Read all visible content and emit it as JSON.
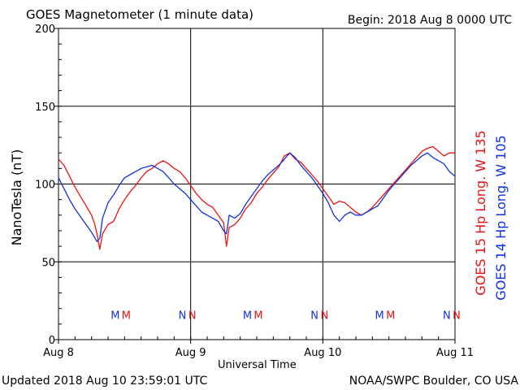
{
  "header": {
    "title": "GOES Magnetometer (1 minute data)",
    "begin": "Begin:  2018 Aug 8 0000 UTC"
  },
  "footer": {
    "updated": "Updated 2018 Aug 10 23:59:01 UTC",
    "credit": "NOAA/SWPC Boulder, CO USA"
  },
  "chart_data": {
    "type": "line",
    "title": "GOES Magnetometer (1 minute data)",
    "xlabel": "Universal Time",
    "ylabel": "NanoTesla (nT)",
    "ylim": [
      0,
      200
    ],
    "yticks": [
      0,
      50,
      100,
      150,
      200
    ],
    "xlim": [
      0,
      72
    ],
    "xticks": [
      {
        "x": 0,
        "label": "Aug 8"
      },
      {
        "x": 24,
        "label": "Aug 9"
      },
      {
        "x": 48,
        "label": "Aug 10"
      },
      {
        "x": 72,
        "label": "Aug 11"
      }
    ],
    "grid": true,
    "series": [
      {
        "name": "GOES 15 Hp  Long. W 135",
        "color": "#ee1111",
        "x": [
          0,
          1,
          2,
          3,
          4,
          5,
          6,
          6.5,
          7,
          7.5,
          8,
          9,
          10,
          11,
          12,
          13,
          14,
          15,
          16,
          17,
          18,
          19,
          20,
          21,
          22,
          23,
          24,
          25,
          26,
          27,
          28,
          29,
          30,
          30.5,
          31,
          32,
          33,
          34,
          35,
          36,
          37,
          38,
          39,
          40,
          41,
          42,
          43,
          44,
          45,
          46,
          47,
          48,
          49,
          50,
          51,
          52,
          53,
          54,
          55,
          56,
          57,
          58,
          59,
          60,
          61,
          62,
          63,
          64,
          65,
          66,
          67,
          68,
          69,
          70,
          71,
          72
        ],
        "values": [
          116,
          112,
          105,
          98,
          92,
          86,
          80,
          75,
          68,
          58,
          68,
          74,
          76,
          84,
          90,
          95,
          99,
          104,
          108,
          110,
          113,
          115,
          113,
          110,
          108,
          104,
          99,
          94,
          90,
          87,
          85,
          80,
          75,
          60,
          72,
          74,
          78,
          84,
          88,
          94,
          98,
          103,
          107,
          111,
          118,
          120,
          116,
          114,
          110,
          106,
          102,
          97,
          92,
          87,
          89,
          88,
          85,
          82,
          80,
          82,
          85,
          89,
          93,
          97,
          101,
          105,
          109,
          113,
          117,
          121,
          123,
          124,
          121,
          118,
          120,
          120
        ]
      },
      {
        "name": "GOES 14 Hp  Long. W 105",
        "color": "#1133dd",
        "x": [
          0,
          1,
          2,
          3,
          4,
          5,
          6,
          6.5,
          7,
          7.5,
          8,
          9,
          10,
          11,
          12,
          13,
          14,
          15,
          16,
          17,
          18,
          19,
          20,
          21,
          22,
          23,
          24,
          25,
          26,
          27,
          28,
          29,
          30,
          30.5,
          31,
          32,
          33,
          34,
          35,
          36,
          37,
          38,
          39,
          40,
          41,
          42,
          43,
          44,
          45,
          46,
          47,
          48,
          49,
          50,
          51,
          52,
          53,
          54,
          55,
          56,
          57,
          58,
          59,
          60,
          61,
          62,
          63,
          64,
          65,
          66,
          67,
          68,
          69,
          70,
          71,
          72
        ],
        "values": [
          104,
          97,
          90,
          84,
          79,
          74,
          69,
          66,
          63,
          65,
          78,
          88,
          93,
          99,
          104,
          106,
          108,
          110,
          111,
          112,
          110,
          108,
          104,
          100,
          97,
          94,
          90,
          86,
          82,
          80,
          78,
          76,
          70,
          68,
          80,
          78,
          81,
          87,
          92,
          97,
          102,
          106,
          109,
          112,
          116,
          120,
          117,
          112,
          108,
          104,
          99,
          94,
          88,
          80,
          76,
          80,
          82,
          80,
          80,
          82,
          84,
          86,
          91,
          96,
          100,
          104,
          108,
          112,
          115,
          118,
          120,
          117,
          115,
          113,
          108,
          105
        ]
      }
    ],
    "markers": [
      {
        "letter": "M",
        "x": 10.3,
        "color": "#1133dd"
      },
      {
        "letter": "M",
        "x": 12.3,
        "color": "#ee1111"
      },
      {
        "letter": "N",
        "x": 22.5,
        "color": "#1133dd"
      },
      {
        "letter": "N",
        "x": 24.3,
        "color": "#ee1111"
      },
      {
        "letter": "M",
        "x": 34.3,
        "color": "#1133dd"
      },
      {
        "letter": "M",
        "x": 36.3,
        "color": "#ee1111"
      },
      {
        "letter": "N",
        "x": 46.5,
        "color": "#1133dd"
      },
      {
        "letter": "N",
        "x": 48.3,
        "color": "#ee1111"
      },
      {
        "letter": "M",
        "x": 58.3,
        "color": "#1133dd"
      },
      {
        "letter": "M",
        "x": 60.3,
        "color": "#ee1111"
      },
      {
        "letter": "N",
        "x": 70.5,
        "color": "#1133dd"
      },
      {
        "letter": "N",
        "x": 72.3,
        "color": "#ee1111"
      }
    ],
    "marker_level": 16
  }
}
